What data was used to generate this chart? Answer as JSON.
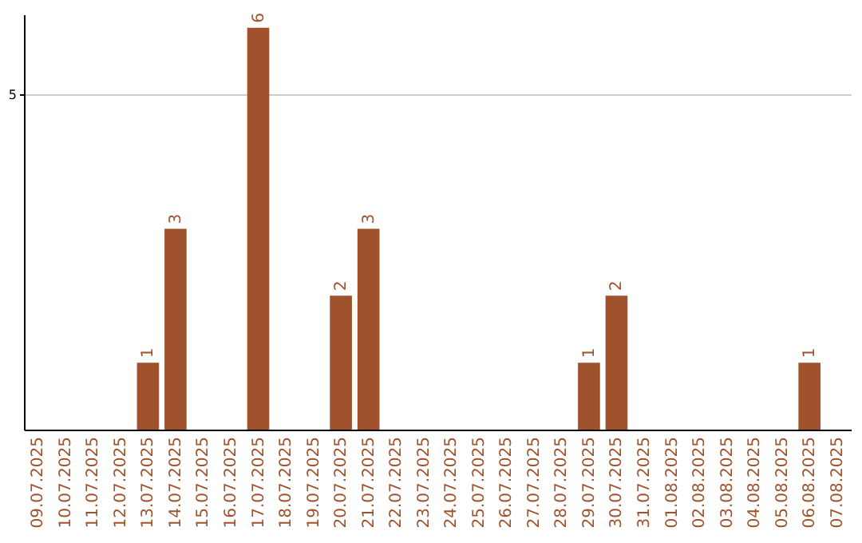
{
  "chart_data": {
    "type": "bar",
    "categories": [
      "09.07.2025",
      "10.07.2025",
      "11.07.2025",
      "12.07.2025",
      "13.07.2025",
      "14.07.2025",
      "15.07.2025",
      "16.07.2025",
      "17.07.2025",
      "18.07.2025",
      "19.07.2025",
      "20.07.2025",
      "21.07.2025",
      "22.07.2025",
      "23.07.2025",
      "24.07.2025",
      "25.07.2025",
      "26.07.2025",
      "27.07.2025",
      "28.07.2025",
      "29.07.2025",
      "30.07.2025",
      "31.07.2025",
      "01.08.2025",
      "02.08.2025",
      "03.08.2025",
      "04.08.2025",
      "05.08.2025",
      "06.08.2025",
      "07.08.2025"
    ],
    "values": [
      0,
      0,
      0,
      0,
      1,
      3,
      0,
      0,
      6,
      0,
      0,
      2,
      3,
      0,
      0,
      0,
      0,
      0,
      0,
      0,
      1,
      2,
      0,
      0,
      0,
      0,
      0,
      0,
      1,
      0
    ],
    "value_labels": [
      null,
      null,
      null,
      null,
      "1",
      "3",
      null,
      null,
      "6",
      null,
      null,
      "2",
      "3",
      null,
      null,
      null,
      null,
      null,
      null,
      null,
      "1",
      "2",
      null,
      null,
      null,
      null,
      null,
      null,
      "1",
      null
    ],
    "color": "#a0522d",
    "ylim": [
      0,
      6.2
    ],
    "yticks": [
      5
    ],
    "grid": "y"
  }
}
